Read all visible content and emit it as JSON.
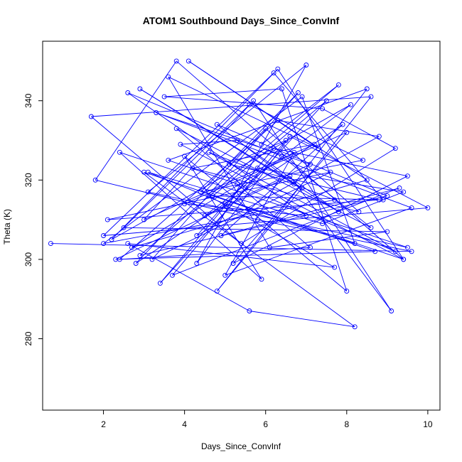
{
  "chart_data": {
    "type": "line",
    "title": "ATOM1 Southbound Days_Since_ConvInf",
    "xlabel": "Days_Since_ConvInf",
    "ylabel": "Theta (K)",
    "xlim": [
      0.5,
      10.3
    ],
    "ylim": [
      262,
      355
    ],
    "xticks": [
      2,
      4,
      6,
      8,
      10
    ],
    "yticks": [
      280,
      300,
      320,
      340
    ],
    "series_color": "#0000ff",
    "marker": "open-circle",
    "grid": false,
    "x": [
      0.7,
      9.6,
      5.8,
      1.8,
      3.8,
      9.4,
      3.0,
      8.2,
      5.6,
      2.6,
      7.7,
      4.6,
      8.9,
      6.2,
      2.0,
      10.0,
      6.6,
      4.3,
      7.0,
      3.1,
      9.5,
      2.4,
      5.9,
      4.0,
      8.0,
      6.4,
      3.5,
      7.4,
      9.2,
      5.4,
      1.7,
      8.6,
      4.8,
      6.9,
      2.9,
      7.8,
      5.3,
      3.9,
      9.4,
      6.3,
      2.2,
      8.1,
      4.5,
      7.1,
      3.3,
      9.6,
      5.0,
      6.7,
      2.7,
      8.5,
      4.1,
      7.3,
      3.6,
      6.1,
      9.0,
      2.5,
      5.6,
      8.4,
      4.4,
      6.8,
      3.2,
      7.6,
      2.1,
      8.8,
      5.1,
      6.5,
      3.7,
      9.3,
      4.9,
      7.9,
      2.8,
      6.0,
      8.3,
      4.2,
      7.2,
      3.0,
      5.7,
      9.1,
      6.6,
      2.3,
      8.7,
      4.7,
      7.5,
      3.4,
      6.2,
      9.5,
      5.2,
      8.0,
      4.0,
      7.0,
      2.6,
      6.4,
      8.6,
      3.8,
      5.5,
      9.2,
      4.6,
      7.7,
      2.0,
      6.9,
      8.2,
      5.0,
      3.1,
      7.4,
      9.4,
      5.8,
      4.3,
      8.8,
      6.3,
      2.4,
      7.1,
      5.3,
      3.6,
      8.5,
      6.7,
      4.8,
      9.0,
      2.9,
      7.8,
      5.9
    ],
    "y": [
      304,
      302,
      310,
      320,
      350,
      300,
      322,
      283,
      287,
      304,
      298,
      316,
      315,
      347,
      306,
      313,
      331,
      299,
      349,
      317,
      303,
      327,
      295,
      326,
      292,
      343,
      341,
      338,
      328,
      304,
      336,
      341,
      292,
      318,
      343,
      312,
      330,
      329,
      300,
      348,
      305,
      339,
      311,
      324,
      337,
      313,
      296,
      327,
      303,
      320,
      350,
      328,
      346,
      303,
      307,
      308,
      339,
      325,
      317,
      342,
      300,
      322,
      310,
      315,
      324,
      330,
      296,
      318,
      306,
      334,
      299,
      333,
      312,
      323,
      329,
      310,
      340,
      287,
      321,
      300,
      302,
      316,
      340,
      294,
      328,
      321,
      299,
      332,
      314,
      311,
      342,
      326,
      308,
      333,
      318,
      302,
      327,
      315,
      304,
      341,
      304,
      314,
      322,
      309,
      317,
      323,
      306,
      331,
      335,
      300,
      303,
      319,
      325,
      343,
      319,
      334,
      316,
      301,
      344,
      329
    ]
  }
}
